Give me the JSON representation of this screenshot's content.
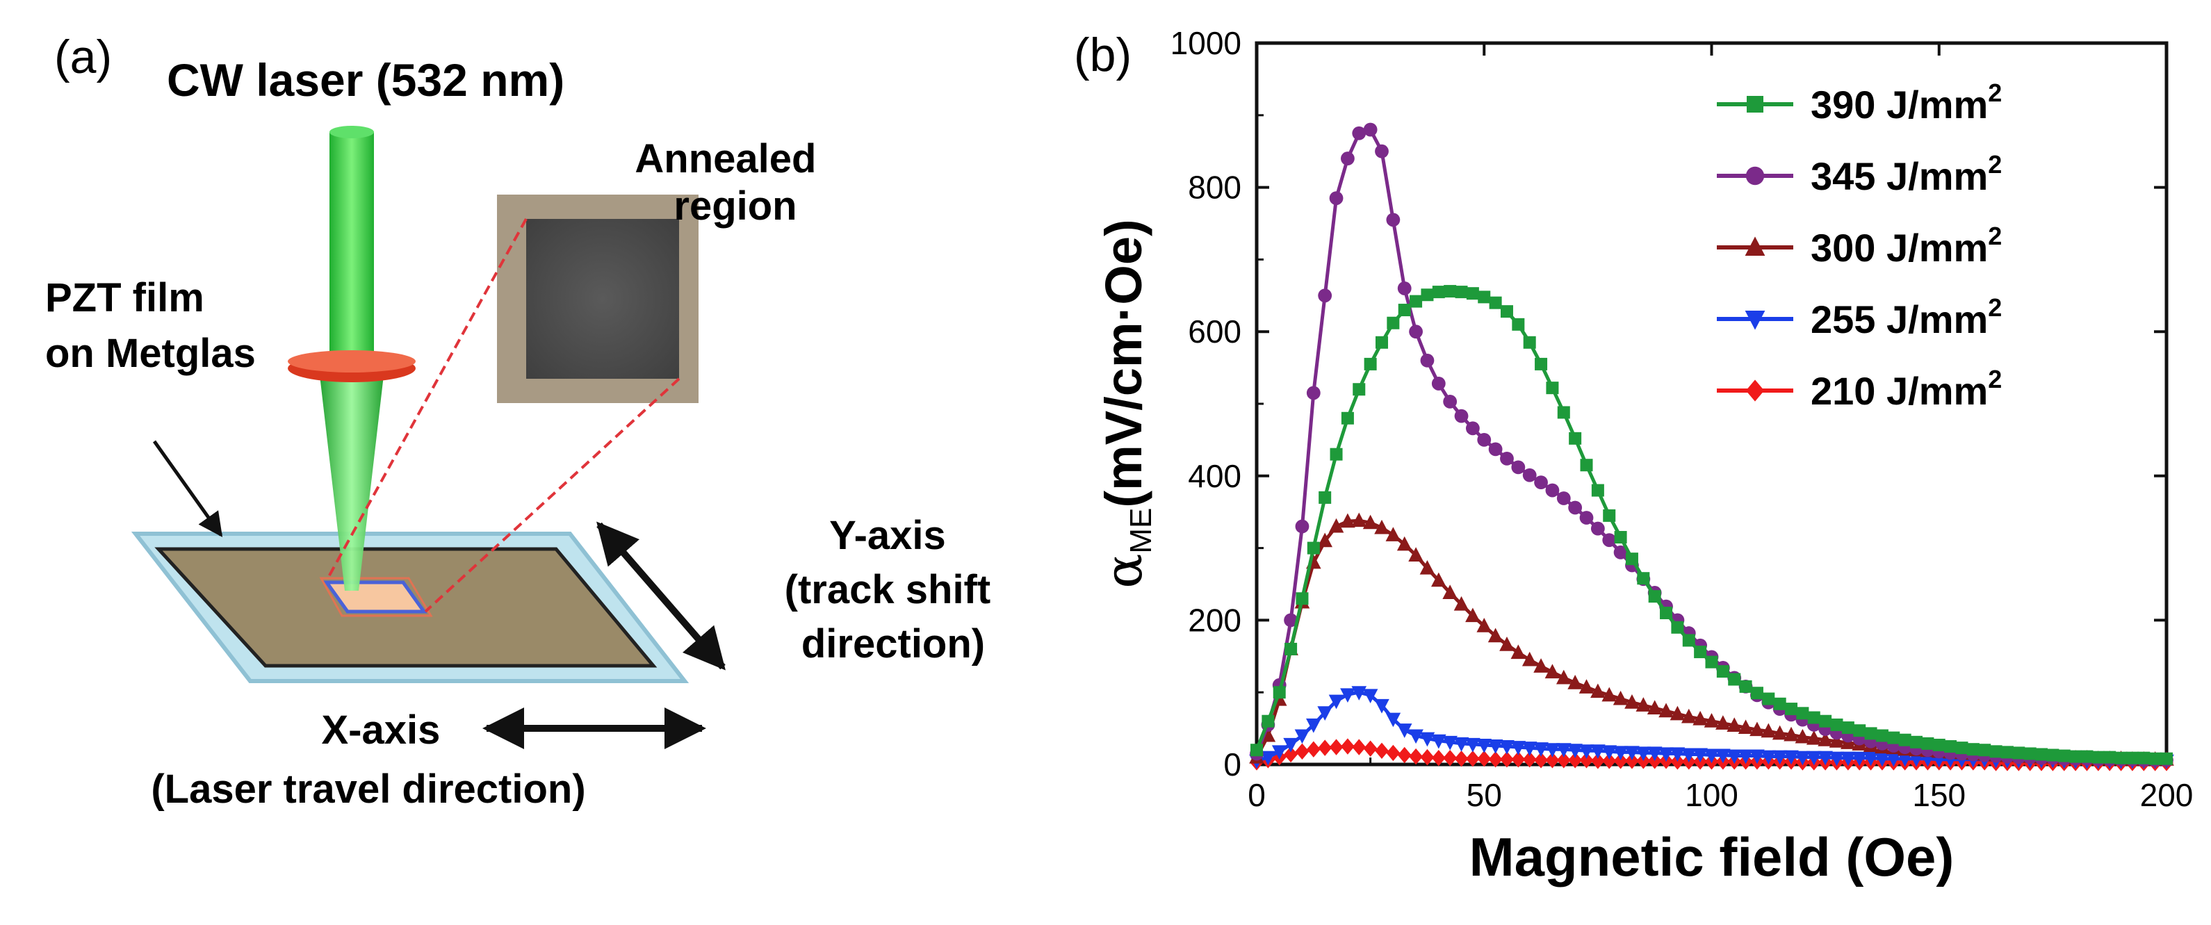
{
  "panel_a": {
    "label": "(a)",
    "laser_title": "CW laser (532 nm)",
    "annealed_label": [
      "Annealed",
      "region"
    ],
    "film_label": [
      "PZT film",
      "on Metglas"
    ],
    "y_axis_label": [
      "Y-axis",
      "(track shift",
      "direction)"
    ],
    "x_axis_label": [
      "X-axis",
      "(Laser travel direction)"
    ],
    "colors": {
      "laser": "#2ecc40",
      "lens": "#d9381e",
      "substrate_border": "#a9d3e3",
      "film": "#9a8a68",
      "annealed_dark": "#4a4a4a",
      "annealed_frame": "#a89a84",
      "guide_line": "#e0343a"
    }
  },
  "panel_b": {
    "label": "(b)",
    "chart_data": {
      "type": "line",
      "title": "",
      "xlabel": "Magnetic field (Oe)",
      "ylabel_main": "α",
      "ylabel_sub": "ME",
      "ylabel_rest": "(mV/cm·Oe)",
      "xlim": [
        0,
        200
      ],
      "ylim": [
        0,
        1000
      ],
      "xticks": [
        0,
        50,
        100,
        150,
        200
      ],
      "yticks": [
        0,
        200,
        400,
        600,
        800,
        1000
      ],
      "legend_position": "top-right",
      "unit_text": "J/mm",
      "unit_sup": "2",
      "series": [
        {
          "name": "390",
          "color": "#1e9a3a",
          "marker": "square",
          "x": [
            0,
            2.5,
            5,
            7.5,
            10,
            12.5,
            15,
            17.5,
            20,
            22.5,
            25,
            27.5,
            30,
            32.5,
            35,
            37.5,
            40,
            42.5,
            45,
            47.5,
            50,
            52.5,
            55,
            57.5,
            60,
            62.5,
            65,
            67.5,
            70,
            72.5,
            75,
            77.5,
            80,
            82.5,
            85,
            87.5,
            90,
            92.5,
            95,
            97.5,
            100,
            102.5,
            105,
            107.5,
            110,
            112.5,
            115,
            117.5,
            120,
            122.5,
            125,
            127.5,
            130,
            132.5,
            135,
            137.5,
            140,
            142.5,
            145,
            147.5,
            150,
            152.5,
            155,
            157.5,
            160,
            162.5,
            165,
            167.5,
            170,
            172.5,
            175,
            177.5,
            180,
            182.5,
            185,
            187.5,
            190,
            192.5,
            195,
            197.5,
            200
          ],
          "y": [
            20,
            60,
            100,
            160,
            230,
            300,
            370,
            430,
            480,
            520,
            555,
            585,
            612,
            630,
            642,
            651,
            655,
            656,
            655,
            653,
            648,
            640,
            628,
            610,
            585,
            555,
            522,
            488,
            452,
            415,
            380,
            345,
            315,
            285,
            258,
            233,
            210,
            190,
            172,
            156,
            142,
            129,
            118,
            108,
            99,
            91,
            84,
            77,
            71,
            65,
            60,
            55,
            51,
            47,
            43,
            40,
            37,
            34,
            31,
            29,
            27,
            25,
            23,
            21,
            20,
            18,
            17,
            16,
            15,
            14,
            13,
            12,
            11,
            11,
            10,
            10,
            9,
            9,
            9,
            8,
            8
          ]
        },
        {
          "name": "345",
          "color": "#7b2a8a",
          "marker": "circle",
          "x": [
            0,
            2.5,
            5,
            7.5,
            10,
            12.5,
            15,
            17.5,
            20,
            22.5,
            25,
            27.5,
            30,
            32.5,
            35,
            37.5,
            40,
            42.5,
            45,
            47.5,
            50,
            52.5,
            55,
            57.5,
            60,
            62.5,
            65,
            67.5,
            70,
            72.5,
            75,
            77.5,
            80,
            82.5,
            85,
            87.5,
            90,
            92.5,
            95,
            97.5,
            100,
            102.5,
            105,
            107.5,
            110,
            112.5,
            115,
            117.5,
            120,
            122.5,
            125,
            127.5,
            130,
            132.5,
            135,
            137.5,
            140,
            142.5,
            145,
            147.5,
            150,
            152.5,
            155,
            157.5,
            160,
            162.5,
            165,
            167.5,
            170,
            172.5,
            175,
            177.5,
            180,
            182.5,
            185,
            187.5,
            190,
            192.5,
            195,
            197.5,
            200
          ],
          "y": [
            15,
            55,
            110,
            200,
            330,
            515,
            650,
            785,
            840,
            875,
            880,
            850,
            755,
            660,
            600,
            560,
            528,
            503,
            483,
            466,
            450,
            437,
            424,
            412,
            401,
            391,
            380,
            369,
            356,
            342,
            327,
            311,
            294,
            276,
            257,
            238,
            219,
            200,
            182,
            165,
            149,
            134,
            120,
            108,
            96,
            86,
            77,
            69,
            62,
            55,
            49,
            44,
            40,
            36,
            32,
            29,
            26,
            24,
            22,
            20,
            18,
            16,
            15,
            14,
            13,
            12,
            11,
            10,
            10,
            9,
            9,
            8,
            8,
            8,
            7,
            7,
            7,
            7,
            6,
            6,
            6
          ]
        },
        {
          "name": "300",
          "color": "#8b1a1a",
          "marker": "triangle-up",
          "x": [
            0,
            2.5,
            5,
            7.5,
            10,
            12.5,
            15,
            17.5,
            20,
            22.5,
            25,
            27.5,
            30,
            32.5,
            35,
            37.5,
            40,
            42.5,
            45,
            47.5,
            50,
            52.5,
            55,
            57.5,
            60,
            62.5,
            65,
            67.5,
            70,
            72.5,
            75,
            77.5,
            80,
            82.5,
            85,
            87.5,
            90,
            92.5,
            95,
            97.5,
            100,
            102.5,
            105,
            107.5,
            110,
            112.5,
            115,
            117.5,
            120,
            122.5,
            125,
            127.5,
            130,
            132.5,
            135,
            137.5,
            140,
            142.5,
            145,
            147.5,
            150,
            152.5,
            155,
            157.5,
            160,
            162.5,
            165,
            167.5,
            170,
            172.5,
            175,
            177.5,
            180,
            182.5,
            185,
            187.5,
            190,
            192.5,
            195,
            197.5,
            200
          ],
          "y": [
            10,
            40,
            90,
            160,
            225,
            280,
            310,
            330,
            337,
            338,
            335,
            328,
            318,
            305,
            290,
            272,
            255,
            238,
            222,
            206,
            192,
            178,
            166,
            155,
            145,
            136,
            128,
            120,
            113,
            107,
            101,
            96,
            91,
            86,
            82,
            78,
            74,
            70,
            66,
            63,
            60,
            57,
            54,
            51,
            48,
            46,
            43,
            41,
            38,
            36,
            34,
            32,
            30,
            28,
            26,
            24,
            23,
            21,
            20,
            19,
            18,
            17,
            16,
            15,
            14,
            13,
            12,
            12,
            11,
            10,
            10,
            9,
            9,
            9,
            8,
            8,
            8,
            7,
            7,
            7,
            7
          ]
        },
        {
          "name": "255",
          "color": "#1a3ee8",
          "marker": "triangle-down",
          "x": [
            0,
            2.5,
            5,
            7.5,
            10,
            12.5,
            15,
            17.5,
            20,
            22.5,
            25,
            27.5,
            30,
            32.5,
            35,
            37.5,
            40,
            42.5,
            45,
            47.5,
            50,
            52.5,
            55,
            57.5,
            60,
            62.5,
            65,
            67.5,
            70,
            72.5,
            75,
            77.5,
            80,
            82.5,
            85,
            87.5,
            90,
            92.5,
            95,
            97.5,
            100,
            102.5,
            105,
            107.5,
            110,
            112.5,
            115,
            117.5,
            120,
            122.5,
            125,
            127.5,
            130,
            132.5,
            135,
            137.5,
            140,
            142.5,
            145,
            147.5,
            150,
            152.5,
            155,
            157.5,
            160,
            162.5,
            165,
            167.5,
            170,
            172.5,
            175,
            177.5,
            180,
            182.5,
            185,
            187.5,
            190,
            192.5,
            195,
            197.5,
            200
          ],
          "y": [
            5,
            10,
            18,
            28,
            40,
            55,
            72,
            88,
            97,
            100,
            96,
            82,
            63,
            48,
            40,
            36,
            33,
            31,
            29,
            28,
            27,
            26,
            25,
            24,
            23,
            22,
            21,
            21,
            20,
            19,
            19,
            18,
            17,
            17,
            16,
            16,
            15,
            15,
            14,
            14,
            13,
            13,
            12,
            12,
            12,
            11,
            11,
            11,
            10,
            10,
            10,
            9,
            9,
            9,
            9,
            8,
            8,
            8,
            8,
            8,
            7,
            7,
            7,
            7,
            7,
            6,
            6,
            6,
            6,
            6,
            6,
            5,
            5,
            5,
            5,
            5,
            5,
            5,
            5,
            5,
            5
          ]
        },
        {
          "name": "210",
          "color": "#f01a1a",
          "marker": "diamond",
          "x": [
            0,
            2.5,
            5,
            7.5,
            10,
            12.5,
            15,
            17.5,
            20,
            22.5,
            25,
            27.5,
            30,
            32.5,
            35,
            37.5,
            40,
            42.5,
            45,
            47.5,
            50,
            52.5,
            55,
            57.5,
            60,
            62.5,
            65,
            67.5,
            70,
            72.5,
            75,
            77.5,
            80,
            82.5,
            85,
            87.5,
            90,
            92.5,
            95,
            97.5,
            100,
            102.5,
            105,
            107.5,
            110,
            112.5,
            115,
            117.5,
            120,
            122.5,
            125,
            127.5,
            130,
            132.5,
            135,
            137.5,
            140,
            142.5,
            145,
            147.5,
            150,
            152.5,
            155,
            157.5,
            160,
            162.5,
            165,
            167.5,
            170,
            172.5,
            175,
            177.5,
            180,
            182.5,
            185,
            187.5,
            190,
            192.5,
            195,
            197.5,
            200
          ],
          "y": [
            3,
            6,
            10,
            14,
            18,
            21,
            23,
            24,
            25,
            24,
            22,
            19,
            16,
            13,
            11,
            10,
            9,
            9,
            8,
            8,
            8,
            7,
            7,
            7,
            7,
            6,
            6,
            6,
            6,
            6,
            5,
            5,
            5,
            5,
            5,
            5,
            5,
            4,
            4,
            4,
            4,
            4,
            4,
            4,
            4,
            4,
            4,
            4,
            3,
            3,
            3,
            3,
            3,
            3,
            3,
            3,
            3,
            3,
            3,
            3,
            3,
            3,
            3,
            3,
            3,
            2,
            2,
            2,
            2,
            2,
            2,
            2,
            2,
            2,
            2,
            2,
            2,
            2,
            2,
            2,
            2
          ]
        }
      ]
    }
  }
}
